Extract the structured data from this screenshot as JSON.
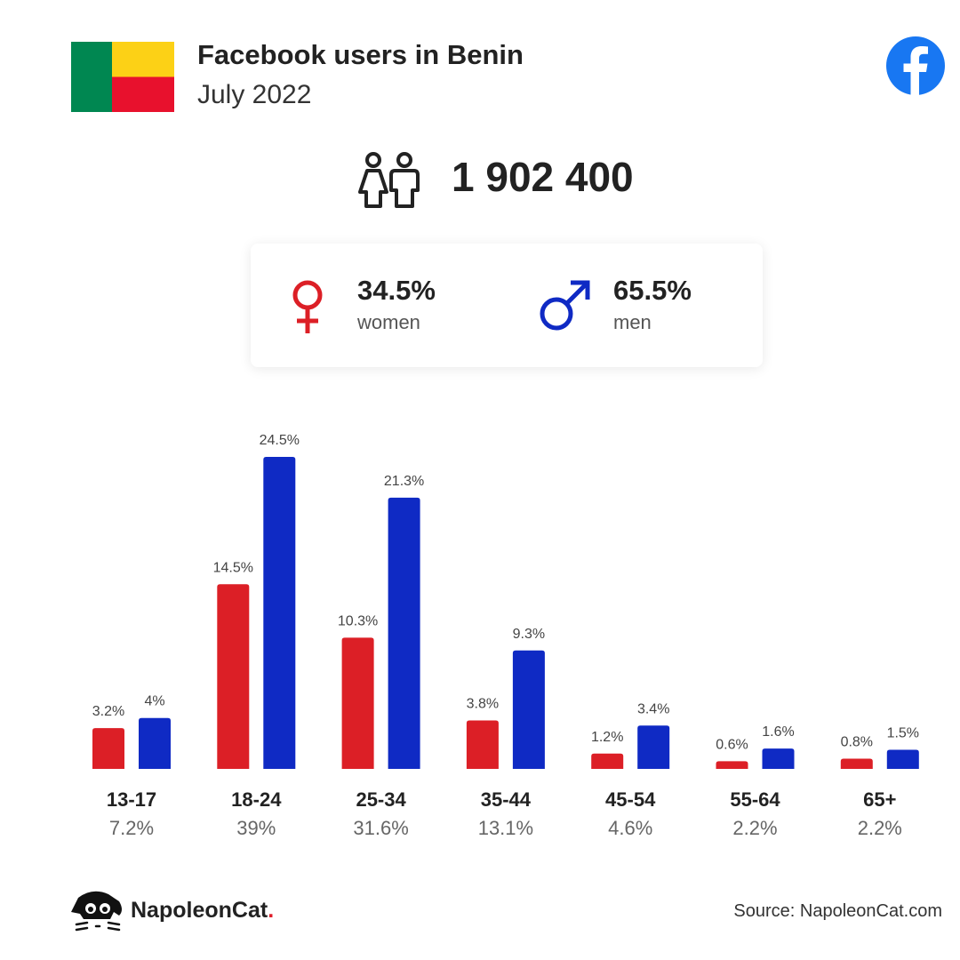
{
  "header": {
    "title": "Facebook users in Benin",
    "subtitle": "July 2022"
  },
  "colors": {
    "women": "#dc1f26",
    "men": "#0f2ac4",
    "flag_green": "#008751",
    "flag_yellow": "#fcd116",
    "flag_red": "#e8112d",
    "facebook_blue": "#1877f2"
  },
  "icons": {
    "flag": "benin-flag-icon",
    "facebook": "facebook-logo-icon",
    "users": "users-icon",
    "female": "female-symbol-icon",
    "male": "male-symbol-icon",
    "brand": "napoleoncat-logo-icon"
  },
  "total_users": "1 902 400",
  "gender": {
    "women_pct": "34.5%",
    "women_label": "women",
    "men_pct": "65.5%",
    "men_label": "men"
  },
  "chart_data": {
    "type": "bar",
    "categories": [
      "13-17",
      "18-24",
      "25-34",
      "35-44",
      "45-54",
      "55-64",
      "65+"
    ],
    "category_totals": [
      "7.2%",
      "39%",
      "31.6%",
      "13.1%",
      "4.6%",
      "2.2%",
      "2.2%"
    ],
    "series": [
      {
        "color": "#dc1f26",
        "values": [
          3.2,
          14.5,
          10.3,
          3.8,
          1.2,
          0.6,
          0.8
        ],
        "labels": [
          "3.2%",
          "14.5%",
          "10.3%",
          "3.8%",
          "1.2%",
          "0.6%",
          "0.8%"
        ]
      },
      {
        "color": "#0f2ac4",
        "values": [
          4,
          24.5,
          21.3,
          9.3,
          3.4,
          1.6,
          1.5
        ],
        "labels": [
          "4%",
          "24.5%",
          "21.3%",
          "9.3%",
          "3.4%",
          "1.6%",
          "1.5%"
        ]
      }
    ],
    "ylim": [
      0,
      24.5
    ],
    "grid": false,
    "legend": "none"
  },
  "footer": {
    "brand_name": "NapoleonCat",
    "brand_dot": ".",
    "source": "Source: NapoleonCat.com"
  }
}
